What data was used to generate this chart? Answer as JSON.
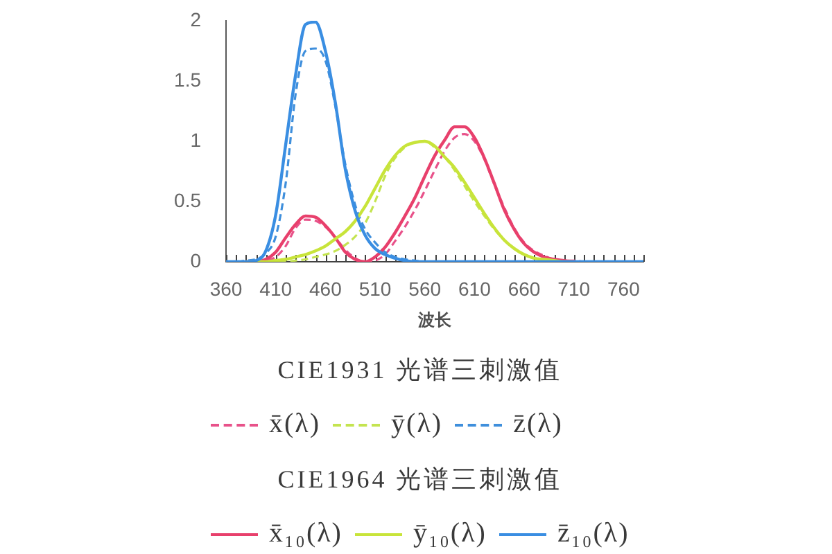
{
  "chart_data": {
    "type": "line",
    "xlabel": "波长",
    "x": [
      360,
      370,
      380,
      390,
      400,
      410,
      420,
      430,
      440,
      450,
      460,
      470,
      480,
      490,
      500,
      510,
      520,
      530,
      540,
      550,
      560,
      570,
      580,
      590,
      600,
      610,
      620,
      630,
      640,
      650,
      660,
      670,
      680,
      690,
      700,
      710,
      720,
      730,
      740,
      750,
      760,
      770,
      780
    ],
    "xlim": [
      360,
      780
    ],
    "xticks": [
      360,
      {
        "value": 370,
        "label": null
      },
      {
        "value": 380,
        "label": null
      },
      {
        "value": 390,
        "label": null
      },
      {
        "value": 400,
        "label": null
      },
      410,
      {
        "value": 420,
        "label": null
      },
      {
        "value": 430,
        "label": null
      },
      {
        "value": 440,
        "label": null
      },
      {
        "value": 450,
        "label": null
      },
      460,
      {
        "value": 470,
        "label": null
      },
      {
        "value": 480,
        "label": null
      },
      {
        "value": 490,
        "label": null
      },
      {
        "value": 500,
        "label": null
      },
      510,
      {
        "value": 520,
        "label": null
      },
      {
        "value": 530,
        "label": null
      },
      {
        "value": 540,
        "label": null
      },
      {
        "value": 550,
        "label": null
      },
      560,
      {
        "value": 570,
        "label": null
      },
      {
        "value": 580,
        "label": null
      },
      {
        "value": 590,
        "label": null
      },
      {
        "value": 600,
        "label": null
      },
      610,
      {
        "value": 620,
        "label": null
      },
      {
        "value": 630,
        "label": null
      },
      {
        "value": 640,
        "label": null
      },
      {
        "value": 650,
        "label": null
      },
      660,
      {
        "value": 670,
        "label": null
      },
      {
        "value": 680,
        "label": null
      },
      {
        "value": 690,
        "label": null
      },
      {
        "value": 700,
        "label": null
      },
      710,
      {
        "value": 720,
        "label": null
      },
      {
        "value": 730,
        "label": null
      },
      {
        "value": 740,
        "label": null
      },
      {
        "value": 750,
        "label": null
      },
      760,
      {
        "value": 770,
        "label": null
      },
      {
        "value": 780,
        "label": null
      }
    ],
    "ylim": [
      0,
      2
    ],
    "yticks": [
      0,
      0.5,
      1,
      1.5,
      2
    ],
    "grid": false,
    "marker": "none",
    "legend": "bottom",
    "annotations": [
      "CIE1931 光谱三刺激值",
      "CIE1964 光谱三刺激值"
    ],
    "series": [
      {
        "name": "x̄(λ)",
        "color": "#e8528a",
        "line_style": "dashed",
        "values": [
          null,
          null,
          0,
          0,
          0.01,
          0.04,
          0.13,
          0.28,
          0.35,
          0.34,
          0.29,
          0.2,
          0.1,
          0.03,
          0,
          0.01,
          0.06,
          0.17,
          0.29,
          0.43,
          0.59,
          0.76,
          0.92,
          1.03,
          1.06,
          1,
          0.85,
          0.64,
          0.45,
          0.28,
          0.16,
          0.09,
          0.05,
          0.02,
          0.01,
          0.01,
          0,
          null,
          null,
          null,
          null,
          null,
          null
        ]
      },
      {
        "name": "ȳ(λ)",
        "color": "#c4e450",
        "line_style": "dashed",
        "values": [
          null,
          null,
          0,
          0,
          0,
          0,
          0,
          0.01,
          0.02,
          0.04,
          0.06,
          0.09,
          0.14,
          0.21,
          0.32,
          0.5,
          0.71,
          0.86,
          0.95,
          0.99,
          1,
          0.95,
          0.87,
          0.76,
          0.63,
          0.5,
          0.38,
          0.27,
          0.18,
          0.11,
          0.06,
          0.03,
          0.02,
          0.01,
          0,
          0,
          null,
          null,
          null,
          null,
          null,
          null,
          null
        ]
      },
      {
        "name": "z̄(λ)",
        "color": "#3f8fdc",
        "line_style": "dashed",
        "values": [
          0,
          0,
          0.01,
          0.02,
          0.07,
          0.21,
          0.65,
          1.39,
          1.75,
          1.77,
          1.67,
          1.29,
          0.81,
          0.47,
          0.27,
          0.16,
          0.08,
          0.04,
          0.02,
          0.01,
          0,
          0,
          0,
          0,
          0,
          0,
          0,
          0,
          0,
          0,
          0,
          0,
          0,
          0,
          0,
          0,
          0,
          0,
          0,
          0,
          0,
          0,
          0
        ]
      },
      {
        "name": "x̄₁₀(λ)",
        "color": "#e8406c",
        "line_style": "solid",
        "values": [
          null,
          null,
          0,
          0,
          0.02,
          0.08,
          0.2,
          0.31,
          0.38,
          0.37,
          0.3,
          0.2,
          0.08,
          0.02,
          0,
          0.04,
          0.12,
          0.24,
          0.38,
          0.53,
          0.71,
          0.88,
          1.01,
          1.12,
          1.12,
          1.03,
          0.86,
          0.65,
          0.43,
          0.27,
          0.15,
          0.08,
          0.04,
          0.02,
          0.01,
          0,
          null,
          null,
          null,
          null,
          null,
          null,
          null
        ]
      },
      {
        "name": "ȳ₁₀(λ)",
        "color": "#c8e43a",
        "line_style": "solid",
        "values": [
          null,
          null,
          0,
          0,
          0,
          0.01,
          0.02,
          0.04,
          0.06,
          0.09,
          0.13,
          0.19,
          0.25,
          0.34,
          0.46,
          0.61,
          0.76,
          0.88,
          0.96,
          0.99,
          1,
          0.96,
          0.87,
          0.78,
          0.66,
          0.53,
          0.4,
          0.28,
          0.18,
          0.11,
          0.06,
          0.03,
          0.02,
          0.01,
          0,
          0,
          null,
          null,
          null,
          null,
          null,
          null,
          null
        ]
      },
      {
        "name": "z̄₁₀(λ)",
        "color": "#3a8ee2",
        "line_style": "solid",
        "values": [
          0,
          0,
          0,
          0.01,
          0.09,
          0.39,
          0.97,
          1.55,
          1.97,
          1.99,
          1.75,
          1.32,
          0.77,
          0.42,
          0.22,
          0.11,
          0.06,
          0.03,
          0.01,
          0,
          0,
          0,
          0,
          0,
          0,
          0,
          0,
          0,
          0,
          0,
          0,
          0,
          0,
          0,
          0,
          0,
          0,
          0,
          0,
          0,
          0,
          0,
          0
        ]
      }
    ]
  }
}
